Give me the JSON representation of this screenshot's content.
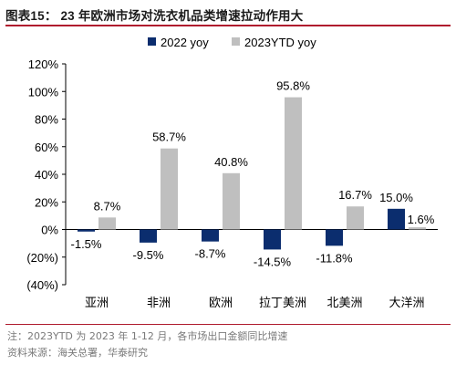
{
  "figure": {
    "title": "图表15： 23 年欧洲市场对洗衣机品类增速拉动作用大",
    "note": "注：2023YTD 为 2023 年 1-12 月，各市场出口金额同比增速",
    "source": "资料来源：海关总署，华泰研究"
  },
  "chart_data": {
    "type": "bar",
    "title": "图表15： 23 年欧洲市场对洗衣机品类增速拉动作用大",
    "categories": [
      "亚洲",
      "非洲",
      "欧洲",
      "拉丁美洲",
      "北美洲",
      "大洋洲"
    ],
    "series": [
      {
        "name": "2022 yoy",
        "values": [
          -1.5,
          -9.5,
          -8.7,
          -14.5,
          -11.8,
          15.0
        ],
        "labels": [
          "-1.5%",
          "-9.5%",
          "-8.7%",
          "-14.5%",
          "-11.8%",
          "15.0%"
        ],
        "color": "#0b2d6e"
      },
      {
        "name": "2023YTD yoy",
        "values": [
          8.7,
          58.7,
          40.8,
          95.8,
          16.7,
          1.6
        ],
        "labels": [
          "8.7%",
          "58.7%",
          "40.8%",
          "95.8%",
          "16.7%",
          "1.6%"
        ],
        "color": "#bfbfbf"
      }
    ],
    "ylim": [
      -40,
      120
    ],
    "yticks": [
      -40,
      -20,
      0,
      20,
      40,
      60,
      80,
      100,
      120
    ],
    "ytick_labels": [
      "(40%)",
      "(20%)",
      "0%",
      "20%",
      "40%",
      "60%",
      "80%",
      "100%",
      "120%"
    ],
    "xlabel": "",
    "ylabel": "",
    "legend": "top-center",
    "grid": false
  }
}
